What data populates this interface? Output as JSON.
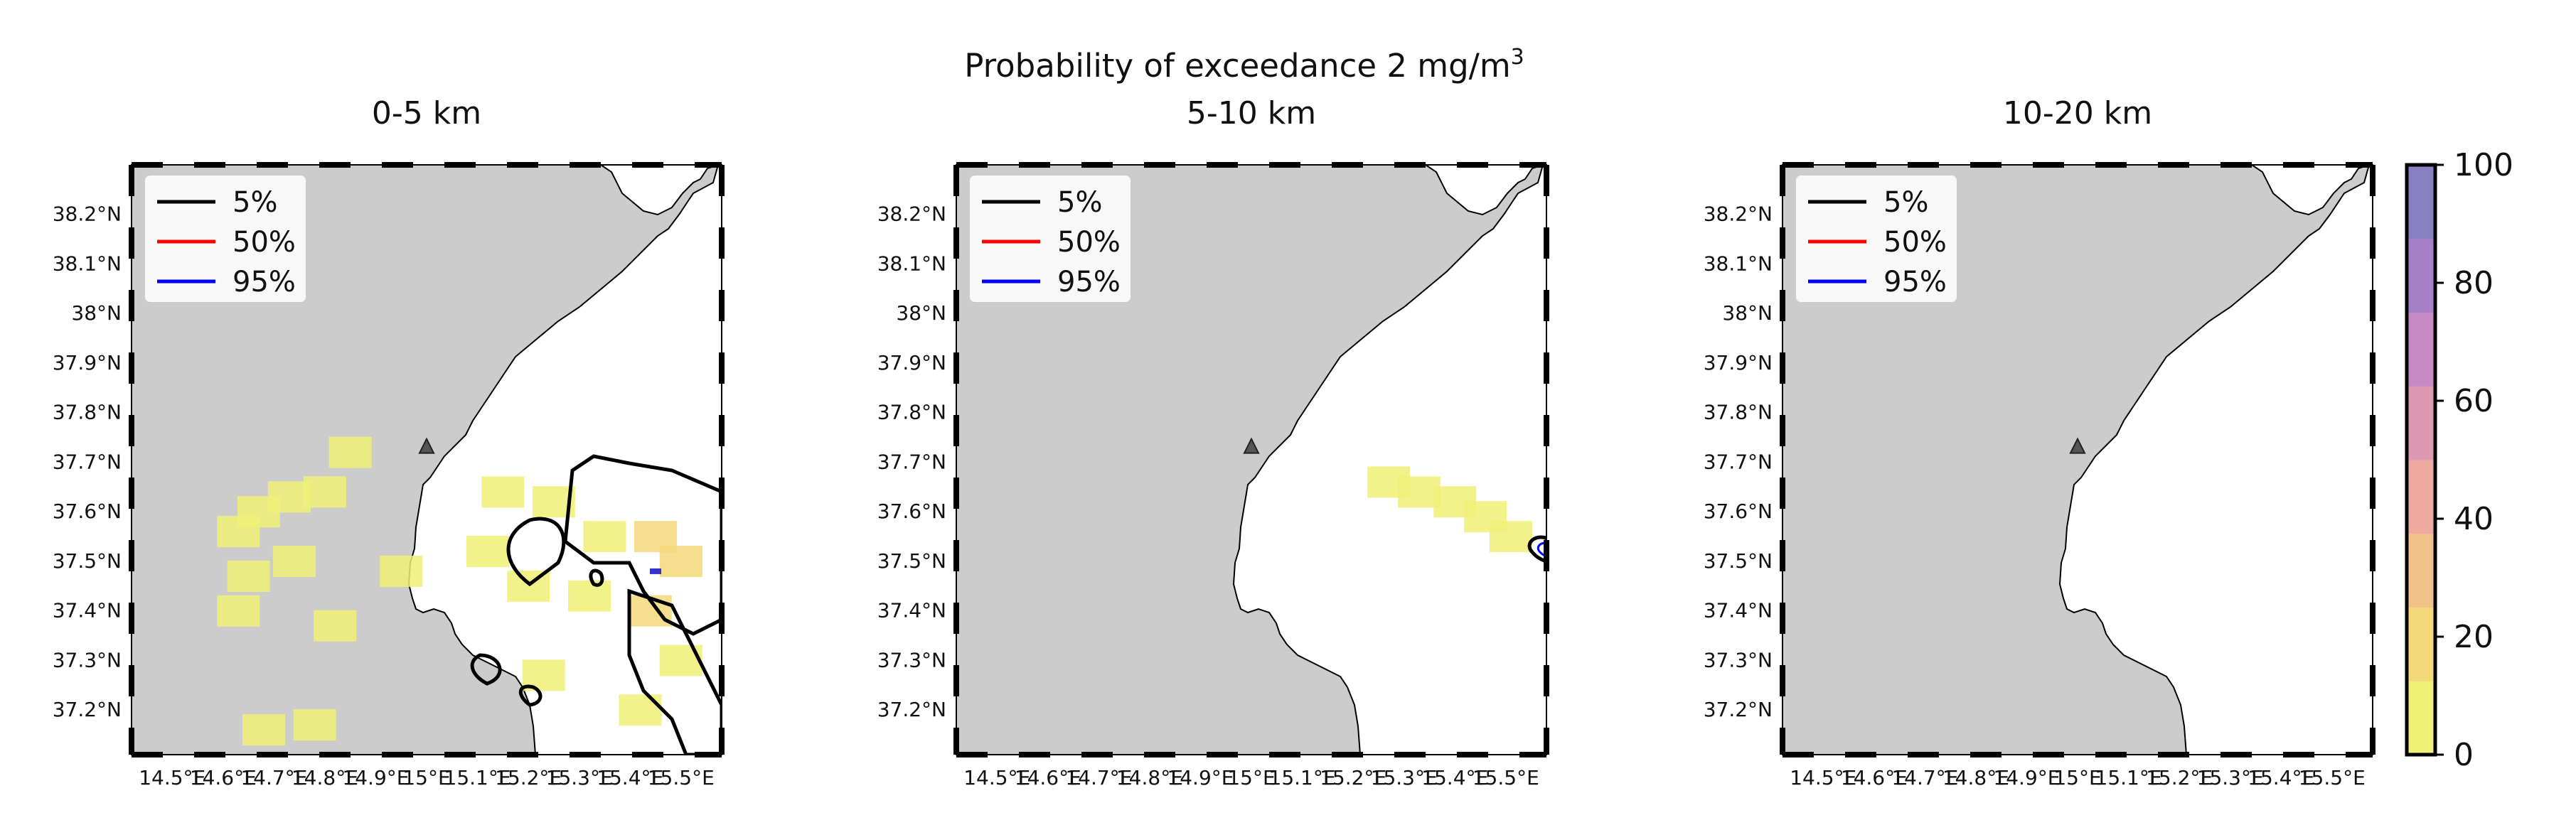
{
  "figure": {
    "suptitle": "Probability of exceedance 2 mg/m",
    "suptitle_superscript": "3"
  },
  "chart_data": [
    {
      "type": "heatmap",
      "title": "0-5 km",
      "x_ticks": [
        "14.5°E",
        "14.6°E",
        "14.7°E",
        "14.8°E",
        "14.9°E",
        "15°E",
        "15.1°E",
        "15.2°E",
        "15.3°E",
        "15.4°E",
        "15.5°E"
      ],
      "y_ticks": [
        "37.2°N",
        "37.3°N",
        "37.4°N",
        "37.5°N",
        "37.6°N",
        "37.7°N",
        "37.8°N",
        "37.9°N",
        "38°N",
        "38.1°N",
        "38.2°N"
      ],
      "legend": [
        "5%",
        "50%",
        "95%"
      ],
      "landmark": {
        "lon": 15.0,
        "lat": 37.73,
        "symbol": "triangle"
      },
      "probability_cells": [
        {
          "lon": 14.67,
          "lat": 37.6,
          "value": 5
        },
        {
          "lon": 14.73,
          "lat": 37.63,
          "value": 5
        },
        {
          "lon": 14.8,
          "lat": 37.64,
          "value": 5
        },
        {
          "lon": 14.85,
          "lat": 37.72,
          "value": 3
        },
        {
          "lon": 14.63,
          "lat": 37.56,
          "value": 4
        },
        {
          "lon": 14.65,
          "lat": 37.47,
          "value": 4
        },
        {
          "lon": 14.63,
          "lat": 37.4,
          "value": 4
        },
        {
          "lon": 14.74,
          "lat": 37.5,
          "value": 4
        },
        {
          "lon": 14.82,
          "lat": 37.37,
          "value": 3
        },
        {
          "lon": 14.95,
          "lat": 37.48,
          "value": 3
        },
        {
          "lon": 14.68,
          "lat": 37.16,
          "value": 4
        },
        {
          "lon": 14.78,
          "lat": 37.17,
          "value": 4
        },
        {
          "lon": 15.15,
          "lat": 37.64,
          "value": 6
        },
        {
          "lon": 15.25,
          "lat": 37.62,
          "value": 8
        },
        {
          "lon": 15.35,
          "lat": 37.55,
          "value": 12
        },
        {
          "lon": 15.45,
          "lat": 37.55,
          "value": 18
        },
        {
          "lon": 15.5,
          "lat": 37.5,
          "value": 22
        },
        {
          "lon": 15.44,
          "lat": 37.4,
          "value": 14
        },
        {
          "lon": 15.5,
          "lat": 37.3,
          "value": 10
        },
        {
          "lon": 15.42,
          "lat": 37.2,
          "value": 8
        },
        {
          "lon": 15.32,
          "lat": 37.43,
          "value": 6
        },
        {
          "lon": 15.2,
          "lat": 37.45,
          "value": 5
        },
        {
          "lon": 15.23,
          "lat": 37.27,
          "value": 7
        },
        {
          "lon": 15.12,
          "lat": 37.52,
          "value": 6
        }
      ]
    },
    {
      "type": "heatmap",
      "title": "5-10 km",
      "x_ticks": [
        "14.5°E",
        "14.6°E",
        "14.7°E",
        "14.8°E",
        "14.9°E",
        "15°E",
        "15.1°E",
        "15.2°E",
        "15.3°E",
        "15.4°E",
        "15.5°E"
      ],
      "y_ticks": [
        "37.2°N",
        "37.3°N",
        "37.4°N",
        "37.5°N",
        "37.6°N",
        "37.7°N",
        "37.8°N",
        "37.9°N",
        "38°N",
        "38.1°N",
        "38.2°N"
      ],
      "legend": [
        "5%",
        "50%",
        "95%"
      ],
      "landmark": {
        "lon": 15.0,
        "lat": 37.73,
        "symbol": "triangle"
      },
      "probability_cells": [
        {
          "lon": 15.27,
          "lat": 37.66,
          "value": 3
        },
        {
          "lon": 15.33,
          "lat": 37.64,
          "value": 4
        },
        {
          "lon": 15.4,
          "lat": 37.62,
          "value": 4
        },
        {
          "lon": 15.46,
          "lat": 37.59,
          "value": 4
        },
        {
          "lon": 15.51,
          "lat": 37.55,
          "value": 6
        }
      ]
    },
    {
      "type": "heatmap",
      "title": "10-20 km",
      "x_ticks": [
        "14.5°E",
        "14.6°E",
        "14.7°E",
        "14.8°E",
        "14.9°E",
        "15°E",
        "15.1°E",
        "15.2°E",
        "15.3°E",
        "15.4°E",
        "15.5°E"
      ],
      "y_ticks": [
        "37.2°N",
        "37.3°N",
        "37.4°N",
        "37.5°N",
        "37.6°N",
        "37.7°N",
        "37.8°N",
        "37.9°N",
        "38°N",
        "38.1°N",
        "38.2°N"
      ],
      "legend": [
        "5%",
        "50%",
        "95%"
      ],
      "landmark": {
        "lon": 15.0,
        "lat": 37.73,
        "symbol": "triangle"
      },
      "probability_cells": []
    }
  ],
  "legend_colors": {
    "5%": "#000000",
    "50%": "#ff0000",
    "95%": "#0000ff"
  },
  "colorbar": {
    "ticks": [
      "0",
      "20",
      "40",
      "60",
      "80",
      "100"
    ],
    "range": [
      0,
      100
    ],
    "colors": [
      "#f0f077",
      "#f3d97a",
      "#f2c28a",
      "#eeaaa0",
      "#dc9ab2",
      "#c88ac4",
      "#a880c8",
      "#8880c0"
    ]
  }
}
